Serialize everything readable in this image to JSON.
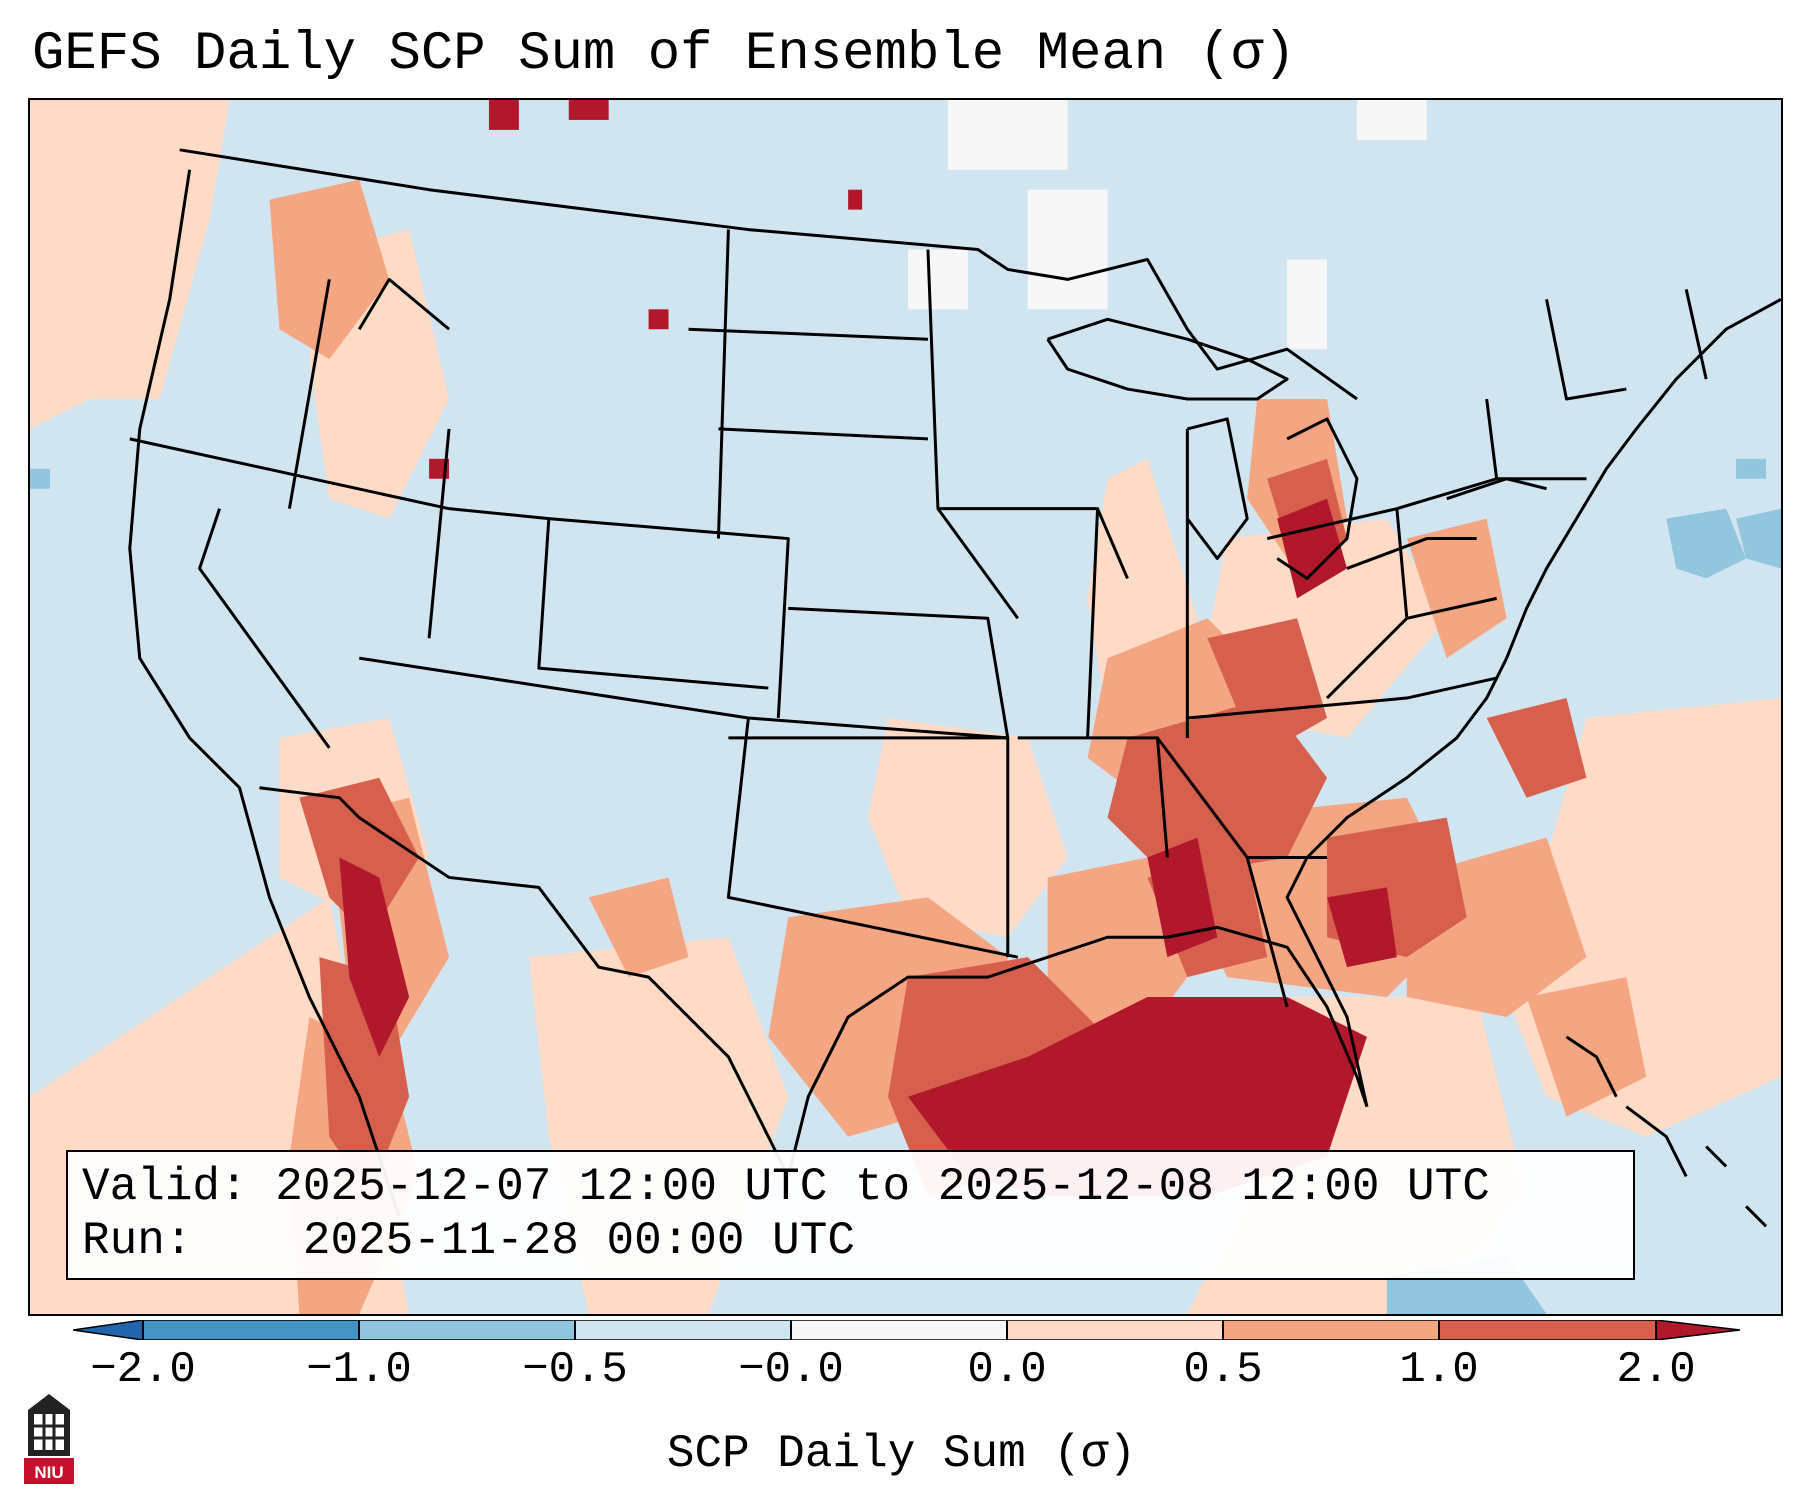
{
  "title": "GEFS Daily SCP Sum of Ensemble Mean (σ)",
  "info": {
    "valid_label": "Valid:",
    "valid_value": "2025-12-07 12:00 UTC to 2025-12-08 12:00 UTC",
    "run_label": "Run:",
    "run_value": "2025-11-28 00:00 UTC"
  },
  "colorbar": {
    "label": "SCP Daily Sum (σ)",
    "ticks": [
      "−2.0",
      "−1.0",
      "−0.5",
      "−0.0",
      "0.0",
      "0.5",
      "1.0",
      "2.0"
    ],
    "colors": [
      "#2166ac",
      "#4393c3",
      "#92c5de",
      "#d1e5f0",
      "#f7f7f7",
      "#fddbc7",
      "#f4a582",
      "#d6604d",
      "#b2182b"
    ]
  },
  "logo": {
    "text": "NIU",
    "color": "#c8102e"
  },
  "colors": {
    "background": "#d1e5f0",
    "light_red": "#fddbc7",
    "salmon": "#f4a582",
    "red": "#d6604d",
    "dark_red": "#b2182b",
    "white": "#f7f7f7",
    "light_blue": "#92c5de",
    "border": "#000000"
  }
}
